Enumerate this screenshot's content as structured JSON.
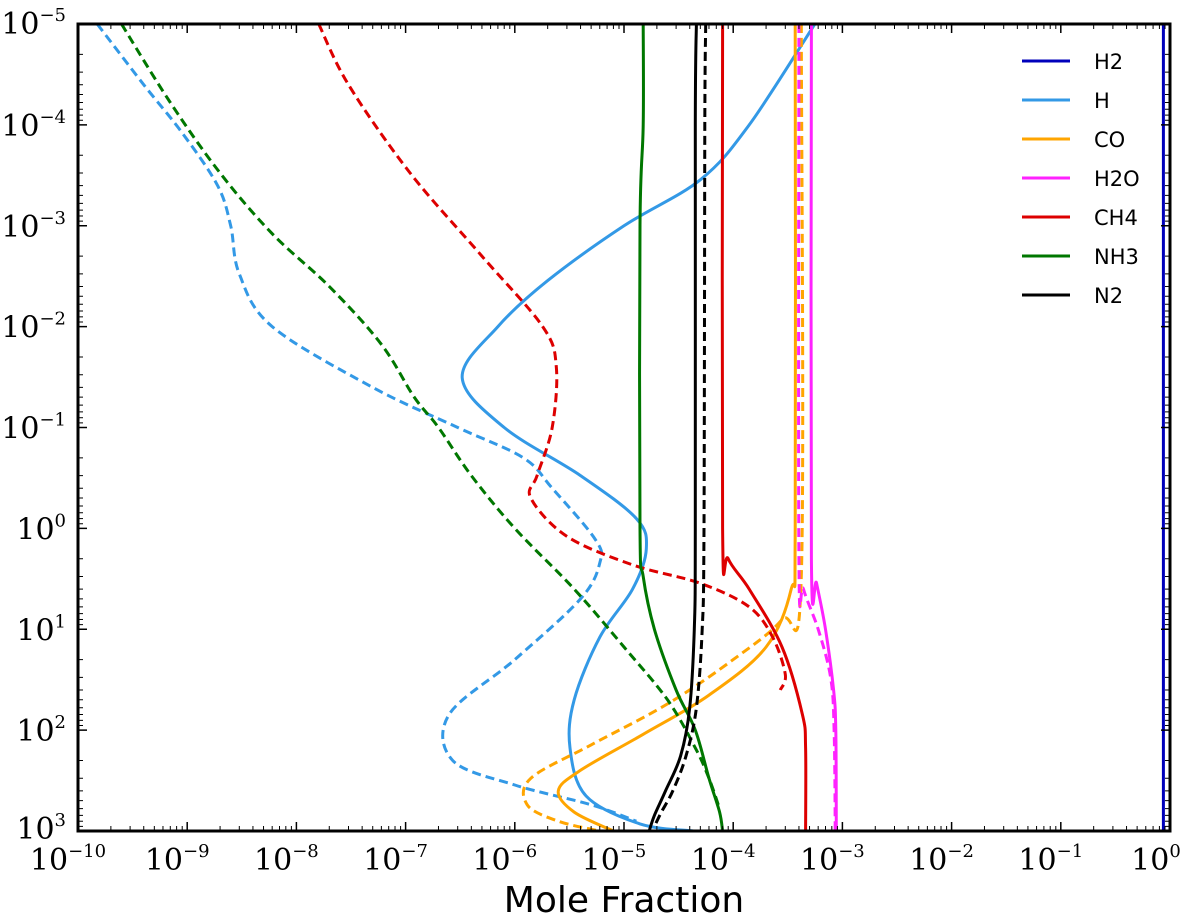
{
  "chart_data": {
    "type": "line",
    "title": "",
    "xlabel": "Mole Fraction",
    "ylabel": "",
    "x_scale": "log",
    "y_scale": "log",
    "y_inverted": true,
    "xlim": [
      1e-10,
      1
    ],
    "ylim": [
      1e-05,
      1000
    ],
    "x_ticks": [
      {
        "value": 1e-10,
        "base": "10",
        "exp": "−10"
      },
      {
        "value": 1e-09,
        "base": "10",
        "exp": "−9"
      },
      {
        "value": 1e-08,
        "base": "10",
        "exp": "−8"
      },
      {
        "value": 1e-07,
        "base": "10",
        "exp": "−7"
      },
      {
        "value": 1e-06,
        "base": "10",
        "exp": "−6"
      },
      {
        "value": 1e-05,
        "base": "10",
        "exp": "−5"
      },
      {
        "value": 0.0001,
        "base": "10",
        "exp": "−4"
      },
      {
        "value": 0.001,
        "base": "10",
        "exp": "−3"
      },
      {
        "value": 0.01,
        "base": "10",
        "exp": "−2"
      },
      {
        "value": 0.1,
        "base": "10",
        "exp": "−1"
      },
      {
        "value": 1,
        "base": "10",
        "exp": "0"
      }
    ],
    "y_ticks": [
      {
        "value": 1e-05,
        "base": "10",
        "exp": "−5"
      },
      {
        "value": 0.0001,
        "base": "10",
        "exp": "−4"
      },
      {
        "value": 0.001,
        "base": "10",
        "exp": "−3"
      },
      {
        "value": 0.01,
        "base": "10",
        "exp": "−2"
      },
      {
        "value": 0.1,
        "base": "10",
        "exp": "−1"
      },
      {
        "value": 1,
        "base": "10",
        "exp": "0"
      },
      {
        "value": 10,
        "base": "10",
        "exp": "1"
      },
      {
        "value": 100,
        "base": "10",
        "exp": "2"
      },
      {
        "value": 1000,
        "base": "10",
        "exp": "3"
      }
    ],
    "grid": false,
    "legend_position": "top-right",
    "legend": [
      {
        "name": "H2",
        "color": "#0000bb"
      },
      {
        "name": "H",
        "color": "#3399e6"
      },
      {
        "name": "CO",
        "color": "#ffa500"
      },
      {
        "name": "H2O",
        "color": "#ff22ff"
      },
      {
        "name": "CH4",
        "color": "#dd0000"
      },
      {
        "name": "NH3",
        "color": "#007700"
      },
      {
        "name": "N2",
        "color": "#000000"
      }
    ],
    "series": [
      {
        "species": "H2",
        "style": "solid",
        "color": "#0000bb",
        "points": [
          [
            0.87,
            1e-05
          ],
          [
            0.87,
            1000
          ]
        ]
      },
      {
        "species": "H",
        "style": "solid",
        "color": "#3399e6",
        "points": [
          [
            0.00056,
            1e-05
          ],
          [
            0.00014,
            0.0001
          ],
          [
            5e-05,
            0.00035
          ],
          [
            1e-05,
            0.001
          ],
          [
            2e-06,
            0.0035
          ],
          [
            7e-07,
            0.01
          ],
          [
            3.3e-07,
            0.032
          ],
          [
            8e-07,
            0.1
          ],
          [
            4e-06,
            0.3
          ],
          [
            1.3e-05,
            0.8
          ],
          [
            1.6e-05,
            1.6
          ],
          [
            1.2e-05,
            4
          ],
          [
            6e-06,
            12
          ],
          [
            3.5e-06,
            50
          ],
          [
            3.2e-06,
            150
          ],
          [
            4.5e-06,
            450
          ],
          [
            1.4e-05,
            850
          ],
          [
            4.3e-05,
            1000
          ]
        ]
      },
      {
        "species": "H",
        "style": "dashed",
        "color": "#3399e6",
        "points": [
          [
            1.5e-10,
            1e-05
          ],
          [
            4e-10,
            4e-05
          ],
          [
            9e-10,
            0.00012
          ],
          [
            1.9e-09,
            0.0004
          ],
          [
            2.5e-09,
            0.001
          ],
          [
            3e-09,
            0.003
          ],
          [
            6e-09,
            0.01
          ],
          [
            5e-08,
            0.04
          ],
          [
            3e-07,
            0.1
          ],
          [
            1.2e-06,
            0.2
          ],
          [
            2.2e-06,
            0.4
          ],
          [
            5.5e-06,
            1.3
          ],
          [
            6e-06,
            2.2
          ],
          [
            4e-06,
            5
          ],
          [
            1e-06,
            20
          ],
          [
            2.5e-07,
            70
          ],
          [
            2.7e-07,
            200
          ],
          [
            1e-06,
            350
          ],
          [
            5e-06,
            550
          ],
          [
            1.3e-05,
            800
          ]
        ]
      },
      {
        "species": "CO",
        "style": "solid",
        "color": "#ffa500",
        "points": [
          [
            0.00037,
            1e-05
          ],
          [
            0.00037,
            1
          ],
          [
            0.00034,
            4
          ],
          [
            0.0002,
            15
          ],
          [
            6e-05,
            45
          ],
          [
            1.5e-05,
            110
          ],
          [
            4e-06,
            250
          ],
          [
            2.5e-06,
            400
          ],
          [
            3.5e-06,
            650
          ],
          [
            8e-06,
            1000
          ]
        ]
      },
      {
        "species": "CO",
        "style": "dashed",
        "color": "#ffa500",
        "points": [
          [
            0.00042,
            1e-05
          ],
          [
            0.00042,
            3
          ],
          [
            0.00028,
            8
          ],
          [
            0.0001,
            20
          ],
          [
            2.5e-05,
            55
          ],
          [
            5e-06,
            140
          ],
          [
            1.4e-06,
            300
          ],
          [
            1.3e-06,
            550
          ],
          [
            2.5e-06,
            800
          ],
          [
            6e-06,
            1000
          ]
        ]
      },
      {
        "species": "H2O",
        "style": "solid",
        "color": "#ff22ff",
        "points": [
          [
            0.00052,
            1e-05
          ],
          [
            0.00052,
            2
          ],
          [
            0.00058,
            3.5
          ],
          [
            0.0007,
            10
          ],
          [
            0.00083,
            40
          ],
          [
            0.00087,
            100
          ],
          [
            0.00088,
            1000
          ]
        ]
      },
      {
        "species": "H2O",
        "style": "dashed",
        "color": "#ff22ff",
        "points": [
          [
            0.0004,
            1e-05
          ],
          [
            0.0004,
            2
          ],
          [
            0.00044,
            4
          ],
          [
            0.0006,
            10
          ],
          [
            0.00078,
            30
          ],
          [
            0.00084,
            100
          ],
          [
            0.00086,
            1000
          ]
        ]
      },
      {
        "species": "CH4",
        "style": "solid",
        "color": "#dd0000",
        "points": [
          [
            8e-05,
            1e-05
          ],
          [
            8e-05,
            1
          ],
          [
            9e-05,
            2
          ],
          [
            0.00014,
            4
          ],
          [
            0.00028,
            15
          ],
          [
            0.00043,
            70
          ],
          [
            0.00046,
            150
          ],
          [
            0.00046,
            1000
          ]
        ]
      },
      {
        "species": "CH4",
        "style": "dashed",
        "color": "#dd0000",
        "points": [
          [
            1.6e-08,
            1e-05
          ],
          [
            3e-08,
            4e-05
          ],
          [
            1.1e-07,
            0.0003
          ],
          [
            5e-07,
            0.002
          ],
          [
            1.8e-06,
            0.01
          ],
          [
            2.4e-06,
            0.025
          ],
          [
            2.2e-06,
            0.1
          ],
          [
            1.6e-06,
            0.3
          ],
          [
            1.4e-06,
            0.5
          ],
          [
            3e-06,
            1.2
          ],
          [
            1.2e-05,
            2.3
          ],
          [
            5e-05,
            3.5
          ],
          [
            0.00014,
            6
          ],
          [
            0.00023,
            12
          ],
          [
            0.0003,
            28
          ],
          [
            0.00027,
            40
          ]
        ]
      },
      {
        "species": "NH3",
        "style": "solid",
        "color": "#007700",
        "points": [
          [
            1.5e-05,
            1e-05
          ],
          [
            1.5e-05,
            0.0001
          ],
          [
            1.4e-05,
            0.001
          ],
          [
            1.4e-05,
            1
          ],
          [
            1.5e-05,
            3
          ],
          [
            1.9e-05,
            10
          ],
          [
            3e-05,
            40
          ],
          [
            4.5e-05,
            100
          ],
          [
            6e-05,
            300
          ],
          [
            7.5e-05,
            650
          ],
          [
            8e-05,
            1000
          ]
        ]
      },
      {
        "species": "NH3",
        "style": "dashed",
        "color": "#007700",
        "points": [
          [
            2.5e-10,
            1e-05
          ],
          [
            7e-10,
            6e-05
          ],
          [
            2e-09,
            0.0003
          ],
          [
            6e-09,
            0.0012
          ],
          [
            2e-08,
            0.004
          ],
          [
            6e-08,
            0.015
          ],
          [
            1.2e-07,
            0.05
          ],
          [
            2e-07,
            0.1
          ],
          [
            4e-07,
            0.3
          ],
          [
            1e-06,
            1
          ],
          [
            3.5e-06,
            4
          ],
          [
            1e-05,
            15
          ],
          [
            2.5e-05,
            50
          ],
          [
            4.5e-05,
            150
          ],
          [
            6e-05,
            300
          ],
          [
            7.5e-05,
            600
          ]
        ]
      },
      {
        "species": "N2",
        "style": "solid",
        "color": "#000000",
        "points": [
          [
            4.6e-05,
            1e-05
          ],
          [
            4.5e-05,
            0.0001
          ],
          [
            4.5e-05,
            1
          ],
          [
            4.4e-05,
            10
          ],
          [
            4e-05,
            60
          ],
          [
            3.3e-05,
            180
          ],
          [
            2.4e-05,
            400
          ],
          [
            1.9e-05,
            700
          ],
          [
            1.7e-05,
            1000
          ]
        ]
      },
      {
        "species": "N2",
        "style": "dashed",
        "color": "#000000",
        "points": [
          [
            5.6e-05,
            1e-05
          ],
          [
            5.5e-05,
            0.0001
          ],
          [
            5.4e-05,
            1
          ],
          [
            5.2e-05,
            10
          ],
          [
            4.6e-05,
            60
          ],
          [
            3.7e-05,
            180
          ],
          [
            2.8e-05,
            400
          ],
          [
            2.2e-05,
            650
          ],
          [
            1.9e-05,
            900
          ]
        ]
      }
    ]
  }
}
